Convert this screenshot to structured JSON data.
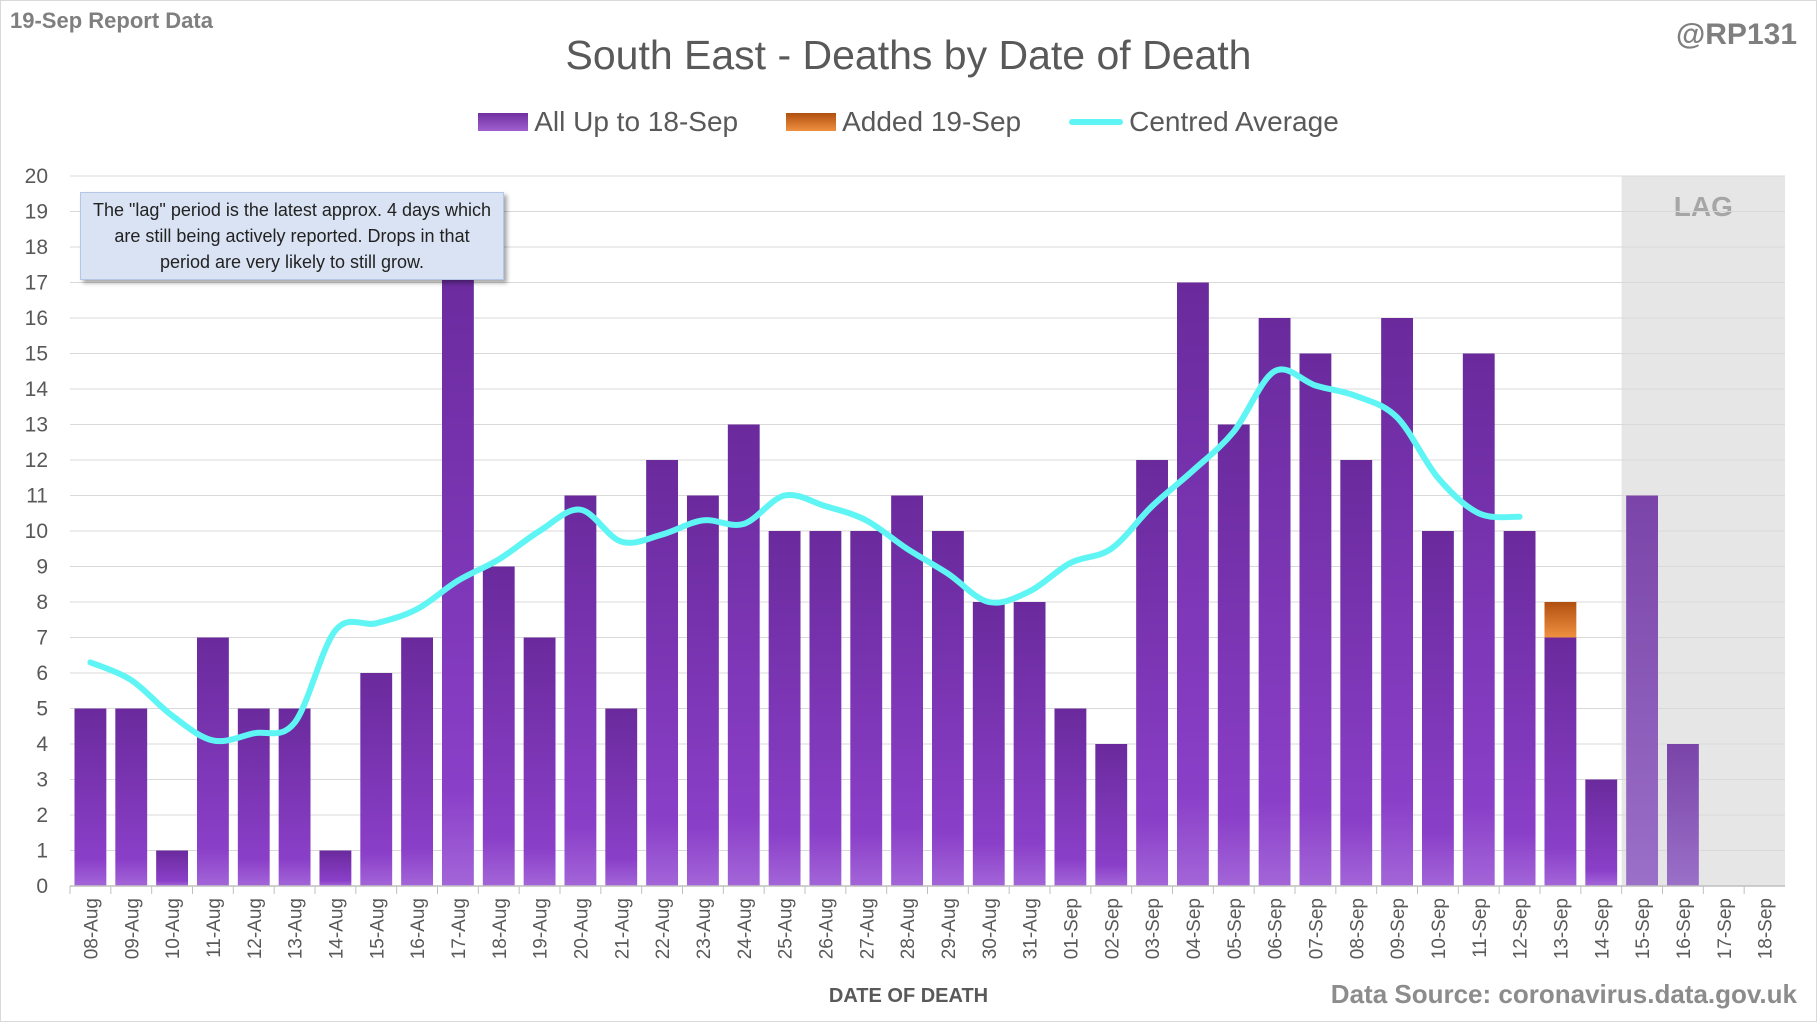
{
  "header": {
    "report_label": "19-Sep Report Data",
    "author": "@RP131",
    "data_source": "Data Source: coronavirus.data.gov.uk"
  },
  "note": "The \"lag\" period is the latest approx. 4 days which are still being actively reported.  Drops in that period are very likely to still grow.",
  "lag_label": "LAG",
  "colors": {
    "existing": "#7030a0",
    "added": "#e07020",
    "average": "#5ff5f5",
    "lag_shade": "#e6e6e6"
  },
  "chart_data": {
    "type": "bar",
    "title": "South East - Deaths by Date of Death",
    "xlabel": "DATE OF DEATH",
    "ylabel": "",
    "ylim": [
      0,
      20
    ],
    "yticks": [
      0,
      1,
      2,
      3,
      4,
      5,
      6,
      7,
      8,
      9,
      10,
      11,
      12,
      13,
      14,
      15,
      16,
      17,
      18,
      19,
      20
    ],
    "grid": true,
    "legend_position": "top-center",
    "categories": [
      "08-Aug",
      "09-Aug",
      "10-Aug",
      "11-Aug",
      "12-Aug",
      "13-Aug",
      "14-Aug",
      "15-Aug",
      "16-Aug",
      "17-Aug",
      "18-Aug",
      "19-Aug",
      "20-Aug",
      "21-Aug",
      "22-Aug",
      "23-Aug",
      "24-Aug",
      "25-Aug",
      "26-Aug",
      "27-Aug",
      "28-Aug",
      "29-Aug",
      "30-Aug",
      "31-Aug",
      "01-Sep",
      "02-Sep",
      "03-Sep",
      "04-Sep",
      "05-Sep",
      "06-Sep",
      "07-Sep",
      "08-Sep",
      "09-Sep",
      "10-Sep",
      "11-Sep",
      "12-Sep",
      "13-Sep",
      "14-Sep",
      "15-Sep",
      "16-Sep",
      "17-Sep",
      "18-Sep"
    ],
    "lag_start_index": 38,
    "series": [
      {
        "name": "All Up to 18-Sep",
        "kind": "bar",
        "values": [
          5,
          5,
          1,
          7,
          5,
          5,
          1,
          6,
          7,
          18,
          9,
          7,
          11,
          5,
          12,
          11,
          13,
          10,
          10,
          10,
          11,
          10,
          8,
          8,
          5,
          4,
          12,
          17,
          13,
          16,
          15,
          12,
          16,
          10,
          15,
          10,
          7,
          3,
          11,
          4,
          0,
          0
        ]
      },
      {
        "name": "Added 19-Sep",
        "kind": "bar-stacked",
        "values": [
          0,
          0,
          0,
          0,
          0,
          0,
          0,
          0,
          0,
          0,
          0,
          0,
          0,
          0,
          0,
          0,
          0,
          0,
          0,
          0,
          0,
          0,
          0,
          0,
          0,
          0,
          0,
          0,
          0,
          0,
          0,
          0,
          0,
          0,
          0,
          0,
          1,
          0,
          0,
          0,
          0,
          0
        ]
      },
      {
        "name": "Centred Average",
        "kind": "line",
        "values": [
          6.3,
          5.8,
          4.8,
          4.1,
          4.3,
          4.6,
          7.2,
          7.4,
          7.8,
          8.6,
          9.2,
          10.0,
          10.6,
          9.7,
          9.9,
          10.3,
          10.2,
          11.0,
          10.7,
          10.3,
          9.5,
          8.8,
          8.0,
          8.3,
          9.1,
          9.5,
          10.7,
          11.7,
          12.8,
          14.5,
          14.1,
          13.8,
          13.2,
          11.5,
          10.5,
          10.4,
          null,
          null,
          null,
          null,
          null,
          null
        ]
      }
    ]
  }
}
